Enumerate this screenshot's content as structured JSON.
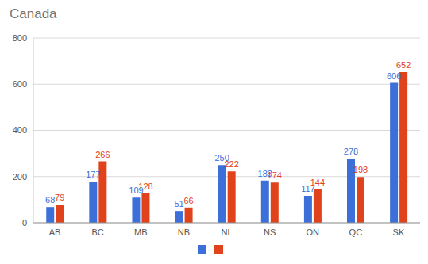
{
  "chart_data": {
    "type": "bar",
    "title": "Canada",
    "categories": [
      "AB",
      "BC",
      "MB",
      "NB",
      "NL",
      "NS",
      "ON",
      "QC",
      "SK"
    ],
    "series": [
      {
        "color": "#3c6fd8",
        "values": [
          68,
          177,
          109,
          51,
          250,
          183,
          117,
          278,
          606
        ]
      },
      {
        "color": "#e0421c",
        "values": [
          79,
          266,
          128,
          66,
          222,
          174,
          144,
          198,
          652
        ]
      }
    ],
    "ylim": [
      0,
      800
    ],
    "yticks": [
      0,
      200,
      400,
      600,
      800
    ],
    "grid": true,
    "legend": "bottom",
    "data_labels": true
  }
}
